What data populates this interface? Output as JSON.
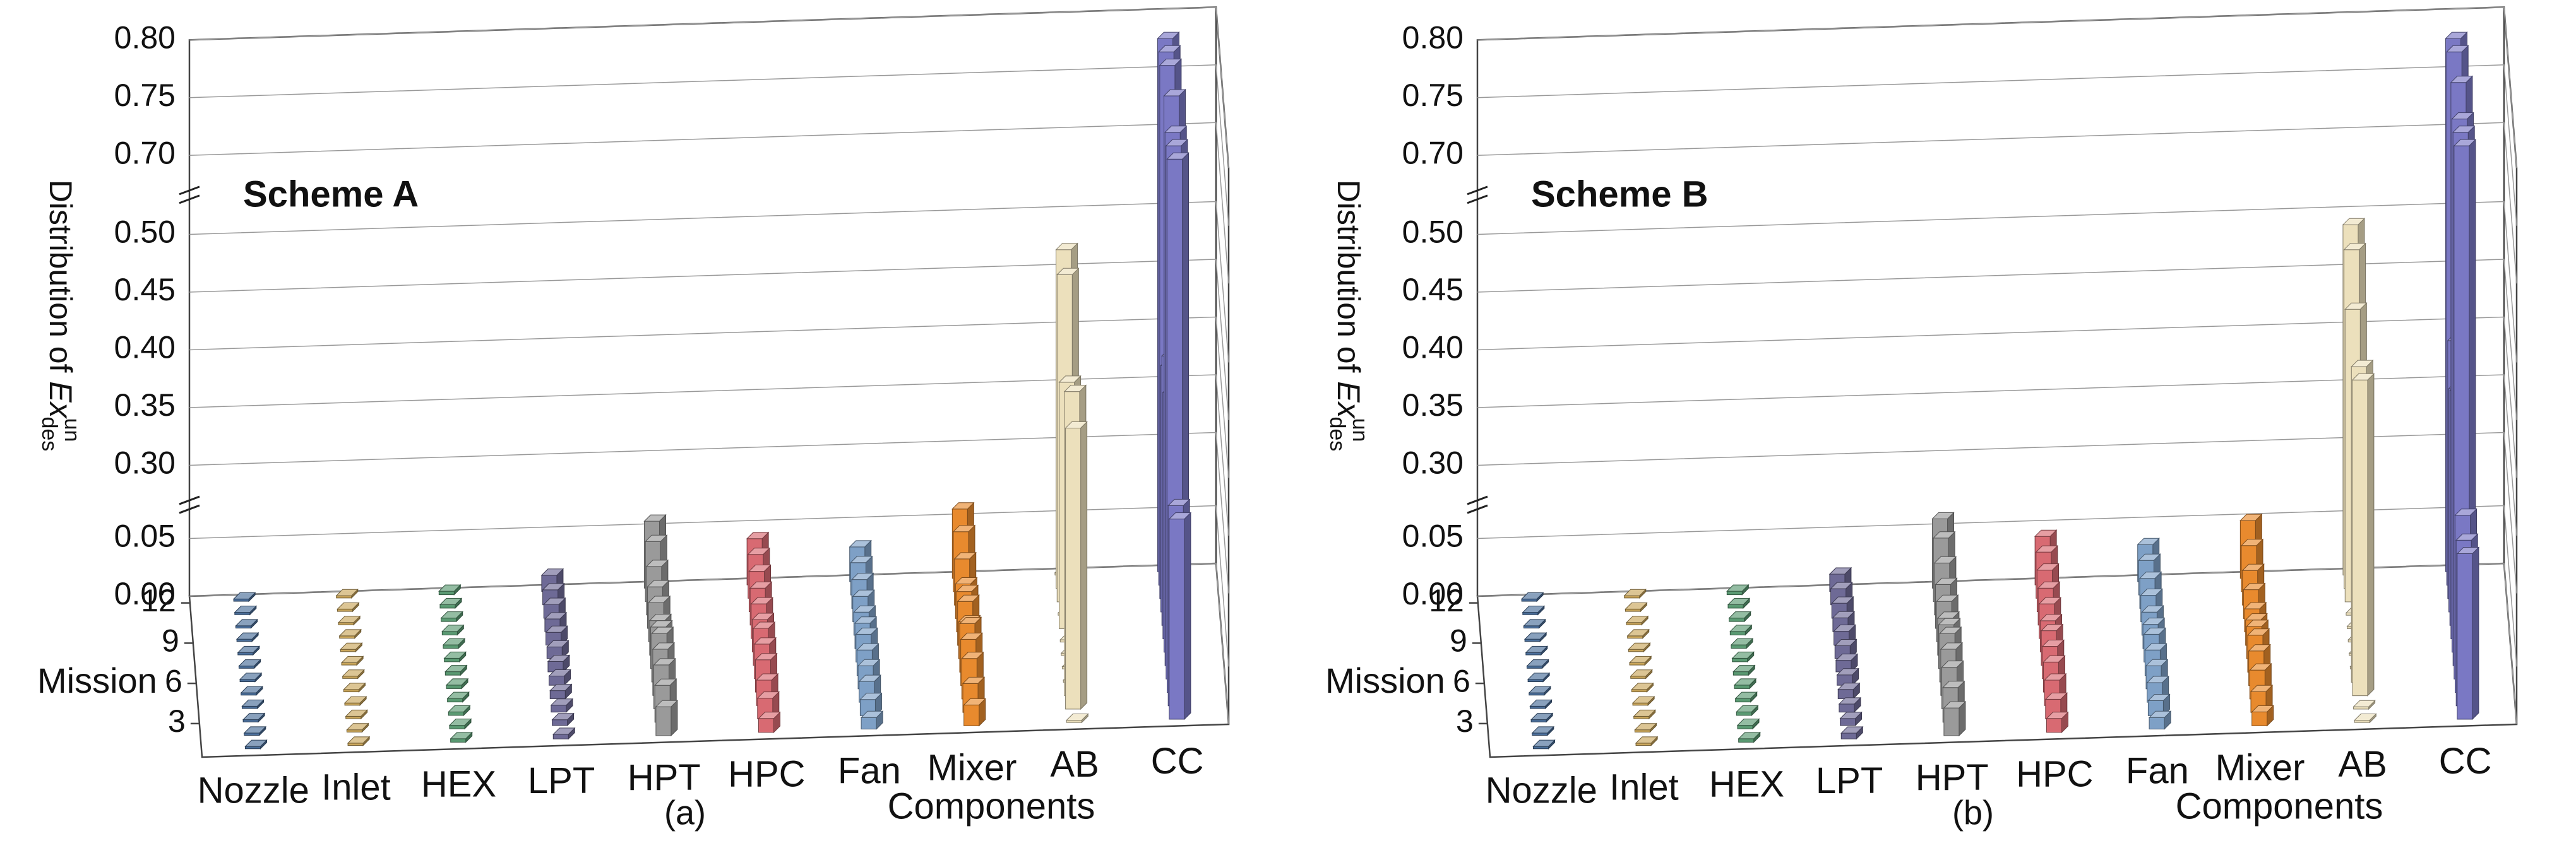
{
  "chart_data": [
    {
      "type": "bar3d",
      "annotation": "Scheme A",
      "caption": "(a)",
      "xlabel": "Components",
      "zlabel": "Mission",
      "ylabel": {
        "text": "Distribution of ",
        "var": "Ex",
        "sup": "un",
        "sub": "des"
      },
      "ylim": [
        0,
        0.8
      ],
      "ybreaks": [
        [
          0.065,
          0.28
        ],
        [
          0.52,
          0.68
        ]
      ],
      "yticks": [
        {
          "value": 0,
          "label": "0.00"
        },
        0.05,
        {
          "value": 0.3,
          "label": "0.30"
        },
        0.35,
        {
          "value": 0.4,
          "label": "0.40"
        },
        0.45,
        {
          "value": 0.5,
          "label": "0.50"
        },
        {
          "value": 0.7,
          "label": "0.70"
        },
        0.75,
        {
          "value": 0.8,
          "label": "0.80"
        }
      ],
      "z": [
        1,
        2,
        3,
        4,
        5,
        6,
        7,
        8,
        9,
        10,
        11,
        12
      ],
      "zlim": [
        1,
        12
      ],
      "zticks": [
        3,
        6,
        9,
        12
      ],
      "series": [
        {
          "name": "Nozzle",
          "color": "#4a6e9a",
          "values": [
            0.002,
            0.002,
            0.002,
            0.002,
            0.002,
            0.002,
            0.002,
            0.002,
            0.002,
            0.002,
            0.002,
            0.002
          ]
        },
        {
          "name": "Inlet",
          "color": "#c9a55a",
          "values": [
            0.002,
            0.002,
            0.002,
            0.002,
            0.002,
            0.002,
            0.002,
            0.002,
            0.002,
            0.002,
            0.002,
            0.002
          ]
        },
        {
          "name": "HEX",
          "color": "#5a9a72",
          "values": [
            0.003,
            0.003,
            0.003,
            0.003,
            0.003,
            0.003,
            0.003,
            0.003,
            0.003,
            0.003,
            0.003,
            0.003
          ]
        },
        {
          "name": "LPT",
          "color": "#6e6a96",
          "values": [
            0.004,
            0.005,
            0.006,
            0.007,
            0.008,
            0.009,
            0.01,
            0.011,
            0.011,
            0.012,
            0.013,
            0.014
          ]
        },
        {
          "name": "HPT",
          "color": "#9a9a9a",
          "values": [
            0.025,
            0.032,
            0.038,
            0.04,
            0.042,
            0.036,
            0.03,
            0.034,
            0.036,
            0.042,
            0.052,
            0.058
          ]
        },
        {
          "name": "HPC",
          "color": "#d86a72",
          "values": [
            0.012,
            0.018,
            0.022,
            0.028,
            0.03,
            0.032,
            0.028,
            0.03,
            0.032,
            0.035,
            0.038,
            0.04
          ]
        },
        {
          "name": "Fan",
          "color": "#7ea0c6",
          "values": [
            0.01,
            0.014,
            0.018,
            0.02,
            0.022,
            0.024,
            0.022,
            0.02,
            0.022,
            0.025,
            0.028,
            0.03
          ]
        },
        {
          "name": "Mixer",
          "color": "#e88a2e",
          "values": [
            0.018,
            0.025,
            0.035,
            0.04,
            0.042,
            0.032,
            0.038,
            0.035,
            0.03,
            0.04,
            0.052,
            0.06
          ]
        },
        {
          "name": "AB",
          "color": "#ece0bc",
          "values": [
            0.002,
            0.43,
            0.45,
            0.002,
            0.002,
            0.002,
            0.002,
            0.4,
            0.002,
            0.47,
            0.48,
            0.002
          ]
        },
        {
          "name": "CC",
          "color": "#7a78c4",
          "values": [
            0.36,
            0.36,
            0.78,
            0.78,
            0.78,
            0.8,
            0.4,
            0.42,
            0.4,
            0.78,
            0.78,
            0.78
          ]
        }
      ]
    },
    {
      "type": "bar3d",
      "annotation": "Scheme B",
      "caption": "(b)",
      "xlabel": "Components",
      "zlabel": "Mission",
      "ylabel": {
        "text": "Distribution of ",
        "var": "Ex",
        "sup": "un",
        "sub": "des"
      },
      "ylim": [
        0,
        0.8
      ],
      "ybreaks": [
        [
          0.065,
          0.28
        ],
        [
          0.52,
          0.68
        ]
      ],
      "yticks": [
        {
          "value": 0,
          "label": "0.00"
        },
        0.05,
        {
          "value": 0.3,
          "label": "0.30"
        },
        0.35,
        {
          "value": 0.4,
          "label": "0.40"
        },
        0.45,
        {
          "value": 0.5,
          "label": "0.50"
        },
        {
          "value": 0.7,
          "label": "0.70"
        },
        0.75,
        {
          "value": 0.8,
          "label": "0.80"
        }
      ],
      "z": [
        1,
        2,
        3,
        4,
        5,
        6,
        7,
        8,
        9,
        10,
        11,
        12
      ],
      "zlim": [
        1,
        12
      ],
      "zticks": [
        3,
        6,
        9,
        12
      ],
      "series": [
        {
          "name": "Nozzle",
          "color": "#4a6e9a",
          "values": [
            0.002,
            0.002,
            0.002,
            0.002,
            0.002,
            0.002,
            0.002,
            0.002,
            0.002,
            0.002,
            0.002,
            0.002
          ]
        },
        {
          "name": "Inlet",
          "color": "#c9a55a",
          "values": [
            0.002,
            0.002,
            0.002,
            0.002,
            0.002,
            0.002,
            0.002,
            0.002,
            0.002,
            0.002,
            0.002,
            0.002
          ]
        },
        {
          "name": "HEX",
          "color": "#5a9a72",
          "values": [
            0.003,
            0.003,
            0.003,
            0.003,
            0.003,
            0.003,
            0.003,
            0.003,
            0.003,
            0.003,
            0.003,
            0.003
          ]
        },
        {
          "name": "LPT",
          "color": "#6e6a96",
          "values": [
            0.005,
            0.006,
            0.007,
            0.008,
            0.009,
            0.01,
            0.011,
            0.012,
            0.012,
            0.013,
            0.014,
            0.015
          ]
        },
        {
          "name": "HPT",
          "color": "#9a9a9a",
          "values": [
            0.024,
            0.03,
            0.036,
            0.04,
            0.042,
            0.038,
            0.032,
            0.035,
            0.038,
            0.045,
            0.055,
            0.06
          ]
        },
        {
          "name": "HPC",
          "color": "#d86a72",
          "values": [
            0.012,
            0.017,
            0.022,
            0.026,
            0.028,
            0.03,
            0.027,
            0.03,
            0.032,
            0.036,
            0.04,
            0.042
          ]
        },
        {
          "name": "Fan",
          "color": "#7ea0c6",
          "values": [
            0.01,
            0.013,
            0.017,
            0.02,
            0.022,
            0.024,
            0.021,
            0.02,
            0.023,
            0.026,
            0.03,
            0.032
          ]
        },
        {
          "name": "Mixer",
          "color": "#e88a2e",
          "values": [
            0.012,
            0.018,
            0.025,
            0.03,
            0.032,
            0.028,
            0.022,
            0.02,
            0.025,
            0.03,
            0.04,
            0.05
          ]
        },
        {
          "name": "AB",
          "color": "#ece0bc",
          "values": [
            0.002,
            0.002,
            0.46,
            0.46,
            0.002,
            0.002,
            0.002,
            0.002,
            0.002,
            0.44,
            0.48,
            0.49
          ]
        },
        {
          "name": "CC",
          "color": "#7a78c4",
          "values": [
            0.33,
            0.33,
            0.34,
            0.78,
            0.78,
            0.78,
            0.8,
            0.39,
            0.38,
            0.41,
            0.78,
            0.78
          ]
        }
      ]
    }
  ]
}
